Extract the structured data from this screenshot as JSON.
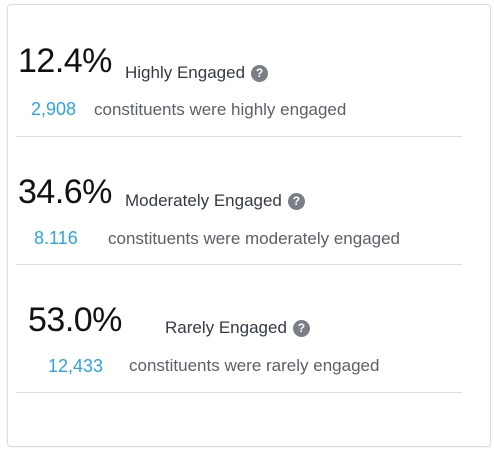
{
  "engagement": {
    "items": [
      {
        "percent": "12.4%",
        "label": "Highly Engaged",
        "count": "2,908",
        "description": "constituents were highly engaged",
        "icon": "question-circle-icon"
      },
      {
        "percent": "34.6%",
        "label": "Moderately Engaged",
        "count": "8.116",
        "description": "constituents were moderately engaged",
        "icon": "question-circle-icon"
      },
      {
        "percent": "53.0%",
        "label": "Rarely Engaged",
        "count": "12,433",
        "description": "constituents were rarely engaged",
        "icon": "question-circle-icon"
      }
    ]
  },
  "colors": {
    "count": "#2fa3df",
    "percent": "#111111",
    "label": "#333a45",
    "description": "#5a6068",
    "icon": "#7a7f86",
    "divider": "#dedede"
  }
}
